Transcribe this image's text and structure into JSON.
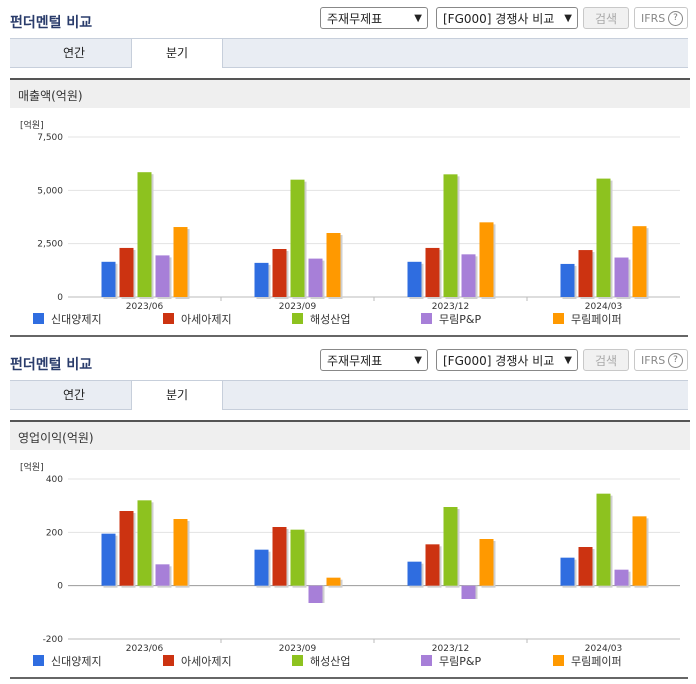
{
  "widgets": [
    {
      "title": "펀더멘털 비교",
      "statement_select": "주재무제표",
      "group_select": "[FG000] 경쟁사 비교",
      "search_label": "검색",
      "ifrs_label": "IFRS",
      "help_symbol": "?",
      "tabs": [
        "연간",
        "분기"
      ],
      "active_tab": "분기",
      "section_label": "매출액(억원)",
      "unit_label": "[억원]"
    },
    {
      "title": "펀더멘털 비교",
      "statement_select": "주재무제표",
      "group_select": "[FG000] 경쟁사 비교",
      "search_label": "검색",
      "ifrs_label": "IFRS",
      "help_symbol": "?",
      "tabs": [
        "연간",
        "분기"
      ],
      "active_tab": "분기",
      "section_label": "영업이익(억원)",
      "unit_label": "[억원]"
    }
  ],
  "chart_data": [
    {
      "type": "bar",
      "title": "매출액(억원)",
      "ylabel": "[억원]",
      "categories": [
        "2023/06",
        "2023/09",
        "2023/12",
        "2024/03"
      ],
      "ylim": [
        0,
        7500
      ],
      "yticks": [
        0,
        2500,
        5000,
        7500
      ],
      "ytick_labels": [
        "0",
        "2,500",
        "5,000",
        "7,500"
      ],
      "grid": true,
      "legend_position": "bottom",
      "series": [
        {
          "name": "신대양제지",
          "color": "#2f6de0",
          "values": [
            1650,
            1600,
            1650,
            1550
          ]
        },
        {
          "name": "아세아제지",
          "color": "#cc3311",
          "values": [
            2300,
            2250,
            2300,
            2200
          ]
        },
        {
          "name": "해성산업",
          "color": "#8dc21f",
          "values": [
            5850,
            5500,
            5750,
            5550
          ]
        },
        {
          "name": "무림P&P",
          "color": "#a77fd8",
          "values": [
            1950,
            1800,
            2000,
            1850
          ]
        },
        {
          "name": "무림페이퍼",
          "color": "#ff9900",
          "values": [
            3280,
            3000,
            3500,
            3320
          ]
        }
      ]
    },
    {
      "type": "bar",
      "title": "영업이익(억원)",
      "ylabel": "[억원]",
      "categories": [
        "2023/06",
        "2023/09",
        "2023/12",
        "2024/03"
      ],
      "ylim": [
        -200,
        400
      ],
      "yticks": [
        -200,
        0,
        200,
        400
      ],
      "ytick_labels": [
        "-200",
        "0",
        "200",
        "400"
      ],
      "grid": true,
      "legend_position": "bottom",
      "series": [
        {
          "name": "신대양제지",
          "color": "#2f6de0",
          "values": [
            195,
            135,
            90,
            105
          ]
        },
        {
          "name": "아세아제지",
          "color": "#cc3311",
          "values": [
            280,
            220,
            155,
            145
          ]
        },
        {
          "name": "해성산업",
          "color": "#8dc21f",
          "values": [
            320,
            210,
            295,
            345
          ]
        },
        {
          "name": "무림P&P",
          "color": "#a77fd8",
          "values": [
            80,
            -65,
            -50,
            60
          ]
        },
        {
          "name": "무림페이퍼",
          "color": "#ff9900",
          "values": [
            250,
            30,
            175,
            260
          ]
        }
      ]
    }
  ]
}
